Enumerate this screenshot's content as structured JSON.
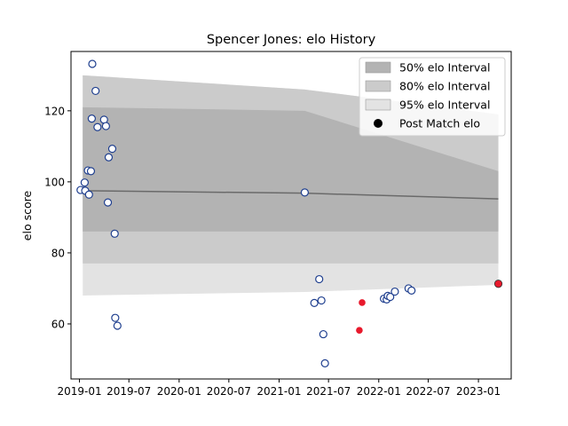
{
  "chart_data": {
    "type": "scatter",
    "title": "Spencer Jones: elo History",
    "xlabel": "",
    "ylabel": "elo score",
    "x_ticks": [
      "2019-01",
      "2019-07",
      "2020-01",
      "2020-07",
      "2021-01",
      "2021-07",
      "2022-01",
      "2022-07",
      "2023-01"
    ],
    "y_ticks": [
      60,
      80,
      100,
      120
    ],
    "xlim": [
      "2018-12-01",
      "2023-05-01"
    ],
    "ylim": [
      44.5,
      136.7
    ],
    "grid": false,
    "legend_position": "top-right",
    "legend": [
      {
        "label": "50% elo Interval",
        "swatch": "band50"
      },
      {
        "label": "80% elo Interval",
        "swatch": "band80"
      },
      {
        "label": "95% elo Interval",
        "swatch": "band95"
      },
      {
        "label": "Post Match elo",
        "swatch": "dot"
      }
    ],
    "colors": {
      "band95": "#e3e3e3",
      "band80": "#cbcbcb",
      "band50": "#b3b3b3",
      "mean_line": "#6a6a6a",
      "history_marker_edge": "#1f3f8f",
      "highlight_marker": "#e8192c",
      "final_marker": "#e8192c"
    },
    "elo_bands": {
      "x": [
        "2019-01-13",
        "2021-04-05",
        "2021-04-05",
        "2023-03-15"
      ],
      "mean": [
        97.5,
        96.8,
        96.8,
        95.2
      ],
      "p50_low": [
        86,
        86,
        86,
        86
      ],
      "p50_high": [
        121,
        120,
        120,
        103
      ],
      "p80_low": [
        77,
        77,
        77,
        77
      ],
      "p80_high": [
        130,
        126,
        126,
        119
      ],
      "p95_low": [
        68,
        69,
        69,
        71
      ],
      "p95_high": [
        130,
        126,
        126,
        119
      ]
    },
    "history_points": [
      {
        "x": "2019-01-05",
        "y": 97.7
      },
      {
        "x": "2019-01-20",
        "y": 99.8
      },
      {
        "x": "2019-01-22",
        "y": 97.5
      },
      {
        "x": "2019-02-01",
        "y": 103.2
      },
      {
        "x": "2019-02-05",
        "y": 96.4
      },
      {
        "x": "2019-02-12",
        "y": 103.0
      },
      {
        "x": "2019-02-15",
        "y": 117.8
      },
      {
        "x": "2019-02-17",
        "y": 133.2
      },
      {
        "x": "2019-03-01",
        "y": 125.6
      },
      {
        "x": "2019-03-08",
        "y": 115.4
      },
      {
        "x": "2019-04-01",
        "y": 117.5
      },
      {
        "x": "2019-04-08",
        "y": 115.7
      },
      {
        "x": "2019-04-15",
        "y": 94.2
      },
      {
        "x": "2019-04-18",
        "y": 106.9
      },
      {
        "x": "2019-05-01",
        "y": 109.3
      },
      {
        "x": "2019-05-10",
        "y": 85.4
      },
      {
        "x": "2019-05-12",
        "y": 61.7
      },
      {
        "x": "2019-05-20",
        "y": 59.5
      },
      {
        "x": "2021-04-05",
        "y": 97.0
      },
      {
        "x": "2021-05-10",
        "y": 65.9
      },
      {
        "x": "2021-05-28",
        "y": 72.6
      },
      {
        "x": "2021-06-05",
        "y": 66.6
      },
      {
        "x": "2021-06-12",
        "y": 57.1
      },
      {
        "x": "2021-06-18",
        "y": 48.9
      },
      {
        "x": "2022-01-20",
        "y": 67.1
      },
      {
        "x": "2022-01-30",
        "y": 66.9
      },
      {
        "x": "2022-02-03",
        "y": 67.9
      },
      {
        "x": "2022-02-12",
        "y": 67.6
      },
      {
        "x": "2022-03-01",
        "y": 69.1
      },
      {
        "x": "2022-04-20",
        "y": 70.0
      },
      {
        "x": "2022-05-01",
        "y": 69.4
      }
    ],
    "highlight_points": [
      {
        "x": "2021-10-22",
        "y": 58.2
      },
      {
        "x": "2021-11-01",
        "y": 66.0
      }
    ],
    "final_point": {
      "x": "2023-03-15",
      "y": 71.3
    }
  }
}
